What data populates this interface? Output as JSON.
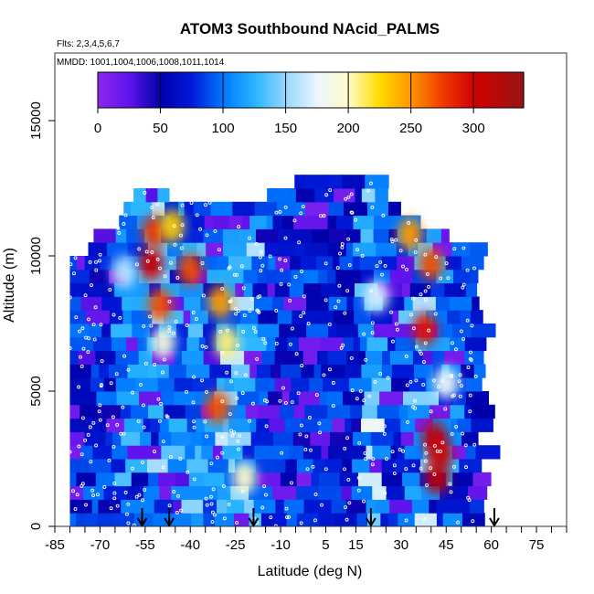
{
  "chart_data": {
    "type": "heatmap",
    "title": "ATOM3 Southbound NAcid_PALMS",
    "subtitle_flights": "Flts: 2,3,4,5,6,7",
    "subtitle_dates": "MMDD: 1001,1004,1006,1008,1011,1014",
    "xlabel": "Latitude (deg N)",
    "ylabel": "Altitude (m)",
    "xlim": [
      -85,
      85
    ],
    "ylim": [
      0,
      17500
    ],
    "x_ticks": [
      "-85",
      "-70",
      "-55",
      "-40",
      "-25",
      "-10",
      "5",
      "15",
      "30",
      "45",
      "60",
      "75"
    ],
    "y_ticks": [
      "0",
      "5000",
      "10000",
      "15000"
    ],
    "colorbar": {
      "min": 0,
      "max": 340,
      "tick_labels": [
        "0",
        "50",
        "100",
        "150",
        "200",
        "250",
        "300"
      ],
      "tick_values": [
        0,
        50,
        100,
        150,
        200,
        250,
        300
      ],
      "boundaries": [
        0,
        50,
        100,
        150,
        200,
        250,
        300,
        340
      ]
    },
    "arrow_latitudes": [
      -56,
      -47,
      -19,
      20,
      61
    ],
    "curtain_profile": [
      {
        "lat": -80,
        "top": 10000
      },
      {
        "lat": -73,
        "top": 10500
      },
      {
        "lat": -65,
        "top": 11300
      },
      {
        "lat": -60,
        "top": 12000
      },
      {
        "lat": -55,
        "top": 12600
      },
      {
        "lat": -50,
        "top": 12500
      },
      {
        "lat": -45,
        "top": 12200
      },
      {
        "lat": -30,
        "top": 12000
      },
      {
        "lat": -15,
        "top": 12200
      },
      {
        "lat": -5,
        "top": 12900
      },
      {
        "lat": 22,
        "top": 12900
      },
      {
        "lat": 28,
        "top": 11800
      },
      {
        "lat": 35,
        "top": 11300
      },
      {
        "lat": 45,
        "top": 10800
      },
      {
        "lat": 55,
        "top": 10500
      }
    ],
    "hotspots": [
      {
        "lat": -53,
        "alt": 9700,
        "value": 300
      },
      {
        "lat": -52,
        "alt": 10900,
        "value": 280
      },
      {
        "lat": -50,
        "alt": 8200,
        "value": 270
      },
      {
        "lat": -46,
        "alt": 11100,
        "value": 230
      },
      {
        "lat": -40,
        "alt": 9500,
        "value": 270
      },
      {
        "lat": -30,
        "alt": 8300,
        "value": 250
      },
      {
        "lat": -31,
        "alt": 4400,
        "value": 270
      },
      {
        "lat": -22,
        "alt": 1800,
        "value": 200
      },
      {
        "lat": -49,
        "alt": 6800,
        "value": 190
      },
      {
        "lat": -28,
        "alt": 6800,
        "value": 210
      },
      {
        "lat": 33,
        "alt": 10800,
        "value": 250
      },
      {
        "lat": 40,
        "alt": 9700,
        "value": 270
      },
      {
        "lat": 38,
        "alt": 7300,
        "value": 290
      },
      {
        "lat": 41,
        "alt": 3300,
        "value": 320
      },
      {
        "lat": 43,
        "alt": 2700,
        "value": 300
      },
      {
        "lat": 42,
        "alt": 1800,
        "value": 310
      },
      {
        "lat": 45,
        "alt": 5300,
        "value": 180
      },
      {
        "lat": 22,
        "alt": 8500,
        "value": 170
      },
      {
        "lat": -62,
        "alt": 9400,
        "value": 160
      }
    ]
  }
}
